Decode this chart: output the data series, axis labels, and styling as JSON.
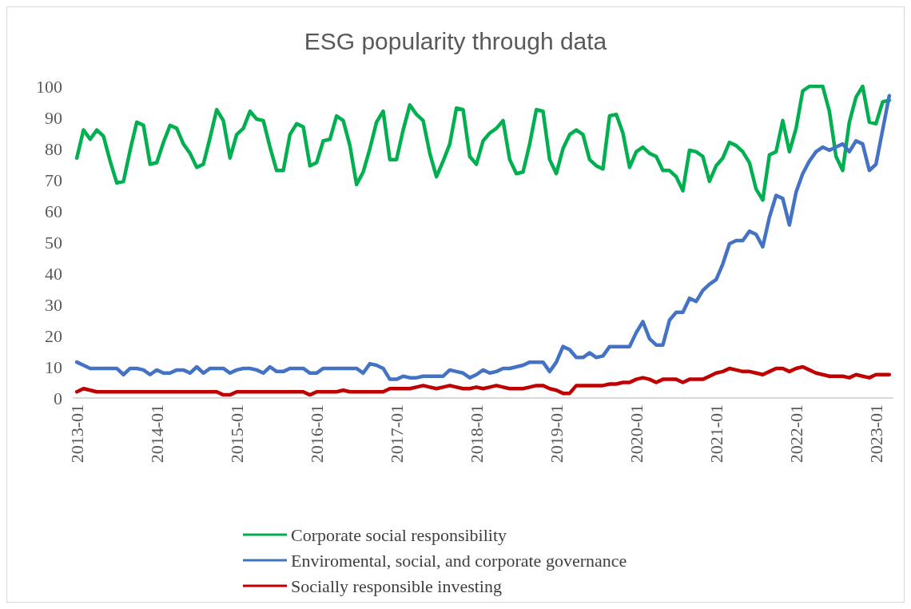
{
  "chart_data": {
    "type": "line",
    "title": "ESG popularity through data",
    "categories": [
      "2013-01",
      null,
      null,
      null,
      null,
      null,
      null,
      null,
      null,
      null,
      null,
      null,
      "2014-01",
      null,
      null,
      null,
      null,
      null,
      null,
      null,
      null,
      null,
      null,
      null,
      "2015-01",
      null,
      null,
      null,
      null,
      null,
      null,
      null,
      null,
      null,
      null,
      null,
      "2016-01",
      null,
      null,
      null,
      null,
      null,
      null,
      null,
      null,
      null,
      null,
      null,
      "2017-01",
      null,
      null,
      null,
      null,
      null,
      null,
      null,
      null,
      null,
      null,
      null,
      "2018-01",
      null,
      null,
      null,
      null,
      null,
      null,
      null,
      null,
      null,
      null,
      null,
      "2019-01",
      null,
      null,
      null,
      null,
      null,
      null,
      null,
      null,
      null,
      null,
      null,
      "2020-01",
      null,
      null,
      null,
      null,
      null,
      null,
      null,
      null,
      null,
      null,
      null,
      "2021-01",
      null,
      null,
      null,
      null,
      null,
      null,
      null,
      null,
      null,
      null,
      null,
      "2022-01",
      null,
      null,
      null,
      null,
      null,
      null,
      null,
      null,
      null,
      null,
      null,
      "2023-01",
      null,
      null
    ],
    "series": [
      {
        "name": "Corporate social responsibility",
        "color": "#00b050",
        "values": [
          77,
          86,
          83,
          86,
          84,
          76,
          69,
          69.5,
          79.5,
          88.5,
          87.5,
          75,
          75.5,
          82,
          87.5,
          86.5,
          81.5,
          78.5,
          74,
          75,
          83.5,
          92.5,
          89,
          77,
          84.5,
          86.5,
          92,
          89.5,
          89,
          80.5,
          73,
          73,
          84.5,
          88,
          87,
          74.5,
          75.5,
          82.5,
          83,
          90.5,
          89,
          81,
          68.5,
          72.5,
          80,
          88.5,
          92,
          76.5,
          76.5,
          86,
          94,
          91,
          89,
          78.5,
          71,
          76,
          81.5,
          93,
          92.5,
          77.5,
          75,
          82.5,
          85,
          86.5,
          89,
          76.5,
          72,
          72.5,
          81.5,
          92.5,
          92,
          76.5,
          72,
          80,
          84.5,
          86,
          84.5,
          76.5,
          74.5,
          73.5,
          90.5,
          91,
          85,
          74,
          79,
          80.5,
          78.5,
          77.5,
          73,
          73,
          71,
          66.5,
          79.5,
          79,
          77.5,
          69.5,
          74.5,
          77,
          82,
          81,
          79,
          75.5,
          67,
          63.5,
          78,
          79,
          89,
          79,
          86.5,
          98.5,
          100,
          100,
          100,
          92,
          77.5,
          73,
          88.5,
          96.5,
          100,
          88.5,
          88,
          95,
          95.5
        ]
      },
      {
        "name": "Enviromental, social, and corporate governance",
        "color": "#4472c4",
        "values": [
          11.5,
          10.5,
          9.5,
          9.5,
          9.5,
          9.5,
          9.5,
          7.5,
          9.5,
          9.5,
          9,
          7.5,
          9,
          8,
          8,
          9,
          9,
          8,
          10,
          8,
          9.5,
          9.5,
          9.5,
          8,
          9,
          9.5,
          9.5,
          9,
          8,
          10,
          8.5,
          8.5,
          9.5,
          9.5,
          9.5,
          8,
          8,
          9.5,
          9.5,
          9.5,
          9.5,
          9.5,
          9.5,
          8,
          11,
          10.5,
          9.5,
          6,
          6,
          7,
          6.5,
          6.5,
          7,
          7,
          7,
          7,
          9,
          8.5,
          8,
          6.5,
          7.5,
          9,
          8,
          8.5,
          9.5,
          9.5,
          10,
          10.5,
          11.5,
          11.5,
          11.5,
          8.5,
          11.5,
          16.5,
          15.5,
          13,
          13,
          14.5,
          13,
          13.5,
          16.5,
          16.5,
          16.5,
          16.5,
          21,
          24.5,
          19,
          17,
          17,
          25,
          27.5,
          27.5,
          32,
          31,
          34.5,
          36.5,
          38,
          43,
          49.5,
          50.5,
          50.5,
          53.5,
          52.5,
          48.5,
          58,
          65,
          64,
          55.5,
          66,
          72,
          76,
          79,
          80.5,
          79.5,
          80.5,
          81.5,
          79,
          82.5,
          81.5,
          73,
          75,
          86,
          97
        ]
      },
      {
        "name": "Socially responsible investing",
        "color": "#c00000",
        "values": [
          2,
          3,
          2.5,
          2,
          2,
          2,
          2,
          2,
          2,
          2,
          2,
          2,
          2,
          2,
          2,
          2,
          2,
          2,
          2,
          2,
          2,
          2,
          1,
          1,
          2,
          2,
          2,
          2,
          2,
          2,
          2,
          2,
          2,
          2,
          2,
          1,
          2,
          2,
          2,
          2,
          2.5,
          2,
          2,
          2,
          2,
          2,
          2,
          3,
          3,
          3,
          3,
          3.5,
          4,
          3.5,
          3,
          3.5,
          4,
          3.5,
          3,
          3,
          3.5,
          3,
          3.5,
          4,
          3.5,
          3,
          3,
          3,
          3.5,
          4,
          4,
          3,
          2.5,
          1.5,
          1.5,
          4,
          4,
          4,
          4,
          4,
          4.5,
          4.5,
          5,
          5,
          6,
          6.5,
          6,
          5,
          6,
          6,
          6,
          5,
          6,
          6,
          6,
          7,
          8,
          8.5,
          9.5,
          9,
          8.5,
          8.5,
          8,
          7.5,
          8.5,
          9.5,
          9.5,
          8.5,
          9.5,
          10,
          9,
          8,
          7.5,
          7,
          7,
          7,
          6.5,
          7.5,
          7,
          6.5,
          7.5,
          7.5,
          7.5
        ]
      }
    ],
    "ylim": [
      0,
      100
    ],
    "yticks": [
      0,
      10,
      20,
      30,
      40,
      50,
      60,
      70,
      80,
      90,
      100
    ],
    "grid": false,
    "legend": "bottom",
    "marker": "none",
    "line_style": "solid"
  }
}
